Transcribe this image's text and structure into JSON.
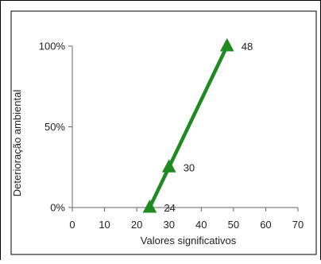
{
  "chart_data": {
    "type": "line",
    "title": "",
    "xlabel": "Valores significativos",
    "ylabel": "Deterioração ambiental",
    "xlim": [
      0,
      70
    ],
    "ylim": [
      0,
      100
    ],
    "x_ticks": [
      0,
      10,
      20,
      30,
      40,
      50,
      60,
      70
    ],
    "y_ticks": [
      {
        "value": 0,
        "label": "0%"
      },
      {
        "value": 50,
        "label": "50%"
      },
      {
        "value": 100,
        "label": "100%"
      }
    ],
    "grid": false,
    "legend": "none",
    "series": [
      {
        "color": "#1f8a1f",
        "marker": "triangle",
        "points": [
          {
            "x": 24,
            "y": 0,
            "label": "24"
          },
          {
            "x": 30,
            "y": 25,
            "label": "30"
          },
          {
            "x": 48,
            "y": 100,
            "label": "48"
          }
        ]
      }
    ]
  }
}
